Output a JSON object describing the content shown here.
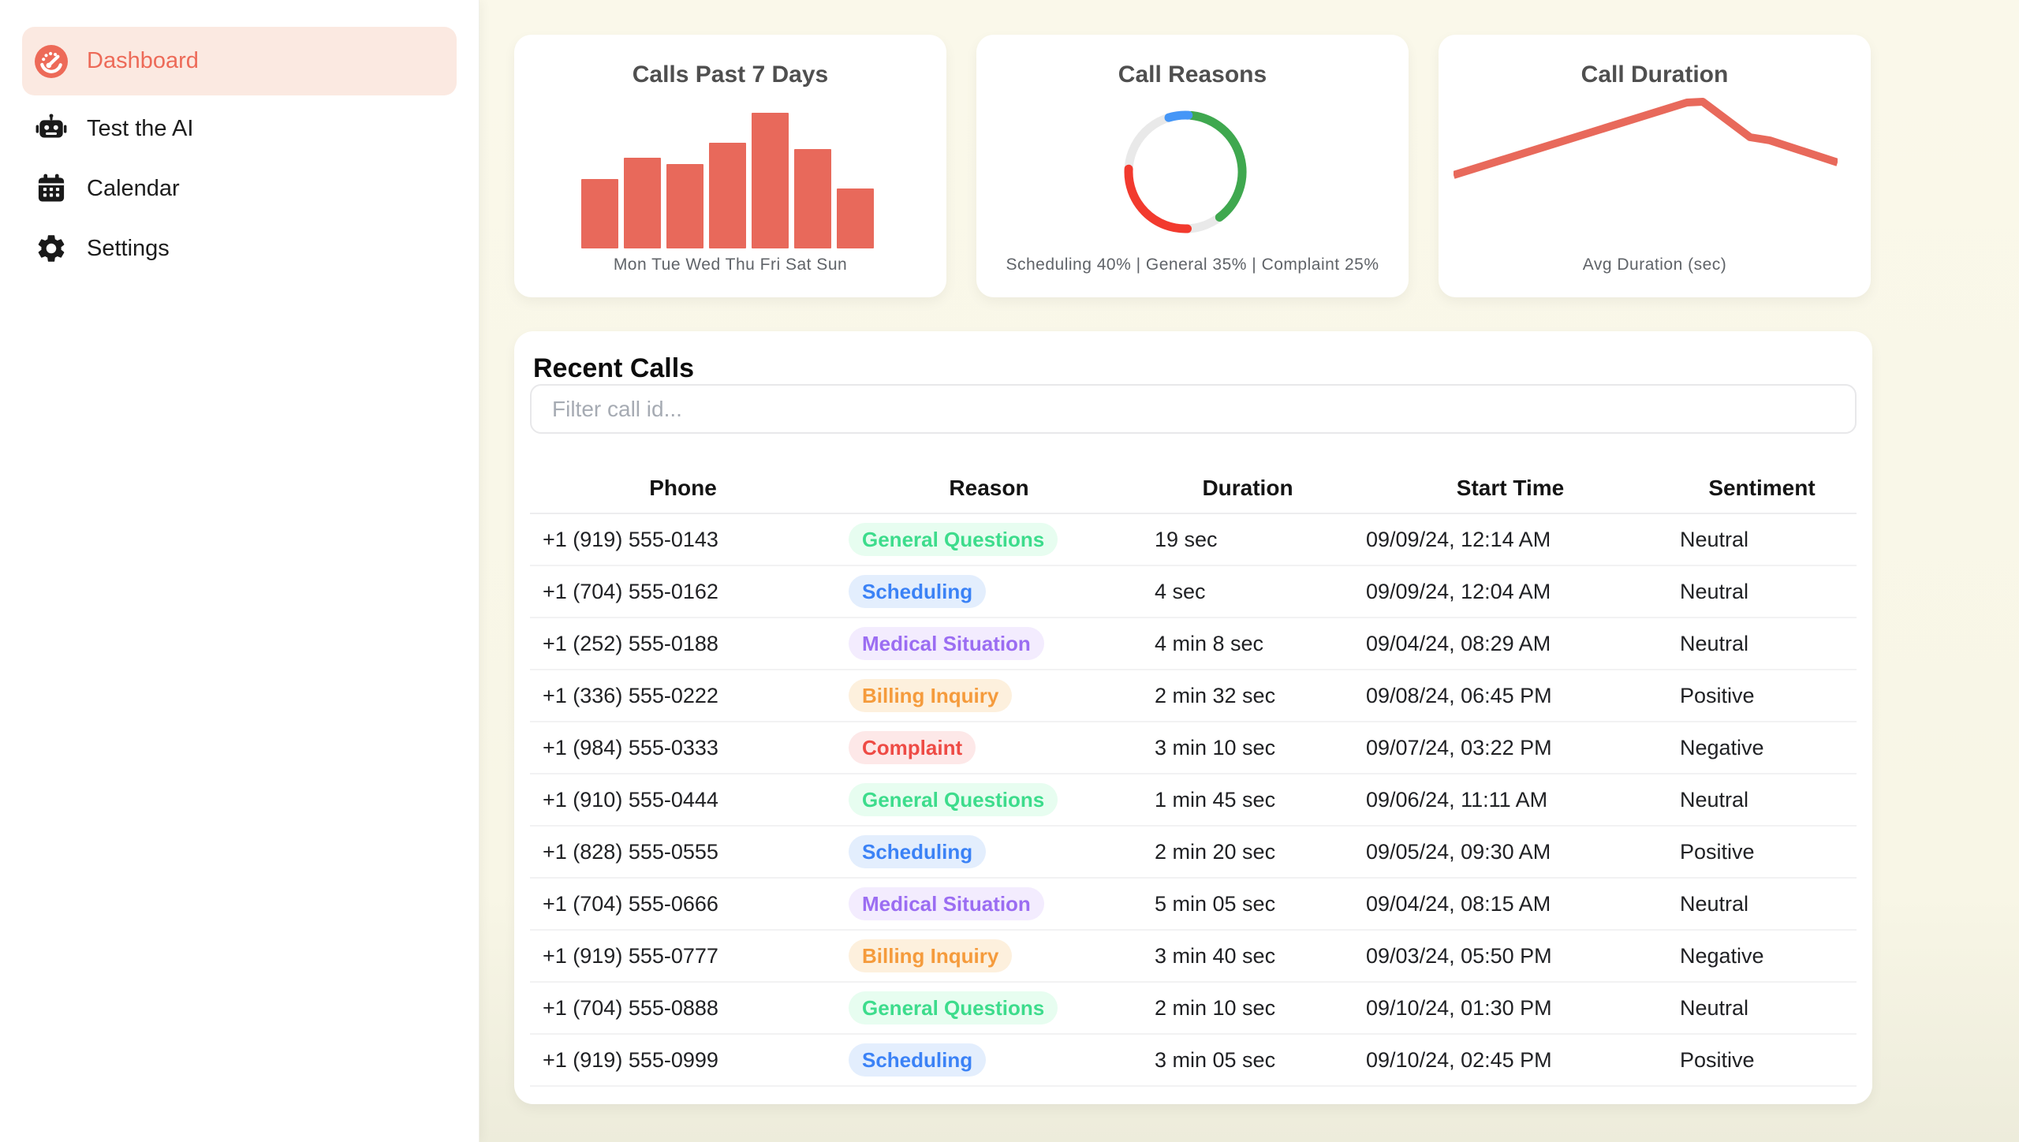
{
  "sidebar": {
    "items": [
      {
        "label": "Dashboard",
        "icon": "gauge-icon",
        "active": true
      },
      {
        "label": "Test the AI",
        "icon": "robot-icon",
        "active": false
      },
      {
        "label": "Calendar",
        "icon": "calendar-icon",
        "active": false
      },
      {
        "label": "Settings",
        "icon": "gear-icon",
        "active": false
      }
    ],
    "active_text_color": "#ed6a58",
    "active_bg_color": "#fbe9e1"
  },
  "chart_data": [
    {
      "type": "bar",
      "title": "Calls Past 7 Days",
      "categories": [
        "Mon",
        "Tue",
        "Wed",
        "Thu",
        "Fri",
        "Sat",
        "Sun"
      ],
      "values": [
        23,
        30,
        28,
        35,
        45,
        33,
        20
      ],
      "ylim": [
        0,
        45
      ],
      "xlabel_row": "Mon Tue Wed Thu Fri Sat Sun",
      "bar_color": "#e8695b"
    },
    {
      "type": "pie",
      "title": "Call Reasons",
      "caption": "Scheduling 40% | General 35% | Complaint 25%",
      "slices": [
        {
          "label": "Scheduling",
          "pct": 40,
          "color": "#4596f7"
        },
        {
          "label": "General",
          "pct": 35,
          "color": "#3fa84f"
        },
        {
          "label": "Complaint",
          "pct": 25,
          "color": "#f23a2e"
        }
      ],
      "arcs": [
        {
          "color": "#3fa84f",
          "start": 6,
          "end": 143
        },
        {
          "color": "#f23a2e",
          "start": 178,
          "end": 273
        },
        {
          "color": "#4596f7",
          "start": 343,
          "end": 363
        }
      ],
      "track_color": "#e9e9e9"
    },
    {
      "type": "line",
      "title": "Call Duration",
      "caption": "Avg Duration (sec)",
      "line_color": "#e8695b",
      "points": [
        [
          0,
          106
        ],
        [
          296,
          14
        ],
        [
          316,
          13
        ],
        [
          376,
          58
        ],
        [
          401,
          62
        ],
        [
          487,
          90
        ]
      ]
    }
  ],
  "recent_calls": {
    "heading": "Recent Calls",
    "filter_placeholder": "Filter call id...",
    "columns": [
      "Phone",
      "Reason",
      "Duration",
      "Start Time",
      "Sentiment"
    ],
    "rows": [
      {
        "phone": "+1 (919) 555-0143",
        "reason": "General Questions",
        "duration": "19 sec",
        "start_time": "09/09/24, 12:14 AM",
        "sentiment": "Neutral"
      },
      {
        "phone": "+1 (704) 555-0162",
        "reason": "Scheduling",
        "duration": "4 sec",
        "start_time": "09/09/24, 12:04 AM",
        "sentiment": "Neutral"
      },
      {
        "phone": "+1 (252) 555-0188",
        "reason": "Medical Situation",
        "duration": "4 min 8 sec",
        "start_time": "09/04/24, 08:29 AM",
        "sentiment": "Neutral"
      },
      {
        "phone": "+1 (336) 555-0222",
        "reason": "Billing Inquiry",
        "duration": "2 min 32 sec",
        "start_time": "09/08/24, 06:45 PM",
        "sentiment": "Positive"
      },
      {
        "phone": "+1 (984) 555-0333",
        "reason": "Complaint",
        "duration": "3 min 10 sec",
        "start_time": "09/07/24, 03:22 PM",
        "sentiment": "Negative"
      },
      {
        "phone": "+1 (910) 555-0444",
        "reason": "General Questions",
        "duration": "1 min 45 sec",
        "start_time": "09/06/24, 11:11 AM",
        "sentiment": "Neutral"
      },
      {
        "phone": "+1 (828) 555-0555",
        "reason": "Scheduling",
        "duration": "2 min 20 sec",
        "start_time": "09/05/24, 09:30 AM",
        "sentiment": "Positive"
      },
      {
        "phone": "+1 (704) 555-0666",
        "reason": "Medical Situation",
        "duration": "5 min 05 sec",
        "start_time": "09/04/24, 08:15 AM",
        "sentiment": "Neutral"
      },
      {
        "phone": "+1 (919) 555-0777",
        "reason": "Billing Inquiry",
        "duration": "3 min 40 sec",
        "start_time": "09/03/24, 05:50 PM",
        "sentiment": "Negative"
      },
      {
        "phone": "+1 (704) 555-0888",
        "reason": "General Questions",
        "duration": "2 min 10 sec",
        "start_time": "09/10/24, 01:30 PM",
        "sentiment": "Neutral"
      },
      {
        "phone": "+1 (919) 555-0999",
        "reason": "Scheduling",
        "duration": "3 min 05 sec",
        "start_time": "09/10/24, 02:45 PM",
        "sentiment": "Positive"
      }
    ],
    "reason_styles": {
      "General Questions": {
        "text": "#3ddc8c",
        "bg": "#e7fdf0"
      },
      "Scheduling": {
        "text": "#3b82f6",
        "bg": "#e3eefd"
      },
      "Medical Situation": {
        "text": "#9b6df2",
        "bg": "#f3ecfe"
      },
      "Billing Inquiry": {
        "text": "#f59b3c",
        "bg": "#fdf0dd"
      },
      "Complaint": {
        "text": "#ee4b45",
        "bg": "#fde8e8"
      }
    }
  }
}
